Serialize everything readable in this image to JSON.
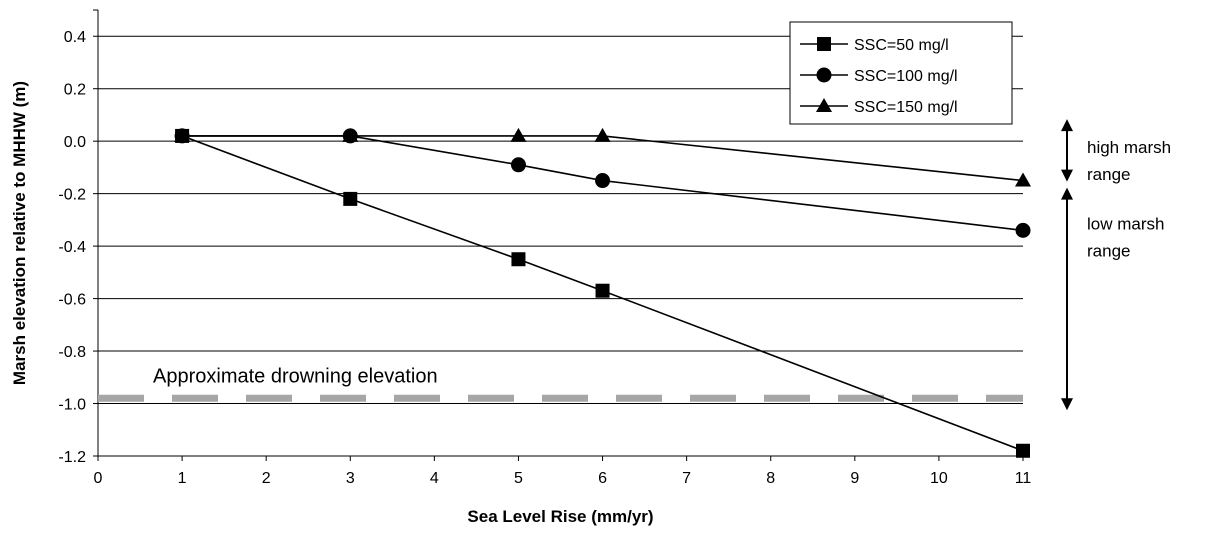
{
  "chart_data": {
    "type": "line",
    "title": "",
    "xlabel": "Sea Level Rise (mm/yr)",
    "ylabel": "Marsh elevation relative to MHHW (m)",
    "xlim": [
      0,
      11
    ],
    "ylim": [
      -1.2,
      0.5
    ],
    "x_categories": [
      "0",
      "1",
      "2",
      "3",
      "4",
      "5",
      "6",
      "7",
      "8",
      "9",
      "10",
      "11"
    ],
    "y_ticks": [
      "0.4",
      "0.2",
      "0.0",
      "-0.2",
      "-0.4",
      "-0.6",
      "-0.8",
      "-1.0",
      "-1.2"
    ],
    "y_tick_values": [
      0.4,
      0.2,
      0.0,
      -0.2,
      -0.4,
      -0.6,
      -0.8,
      -1.0,
      -1.2
    ],
    "grid": "horizontal",
    "legend_position": "top-right",
    "series": [
      {
        "name": "SSC=50 mg/l",
        "marker": "square",
        "x": [
          1,
          3,
          5,
          6,
          11
        ],
        "y": [
          0.02,
          -0.22,
          -0.45,
          -0.57,
          -1.18
        ]
      },
      {
        "name": "SSC=100 mg/l",
        "marker": "circle",
        "x": [
          1,
          3,
          5,
          6,
          11
        ],
        "y": [
          0.02,
          0.02,
          -0.09,
          -0.15,
          -0.34
        ]
      },
      {
        "name": "SSC=150 mg/l",
        "marker": "triangle",
        "x": [
          1,
          3,
          5,
          6,
          11
        ],
        "y": [
          0.02,
          0.02,
          0.02,
          0.02,
          -0.15
        ]
      }
    ],
    "reference_line": {
      "label": "Approximate drowning elevation",
      "y": -0.98,
      "color": "#a6a6a6",
      "style": "dashed"
    },
    "range_annotations": [
      {
        "label_line1": "high marsh",
        "label_line2": "range",
        "from": 0.0,
        "to": -0.2
      },
      {
        "label_line1": "low marsh",
        "label_line2": "range",
        "from": -0.2,
        "to": -0.98
      }
    ]
  }
}
